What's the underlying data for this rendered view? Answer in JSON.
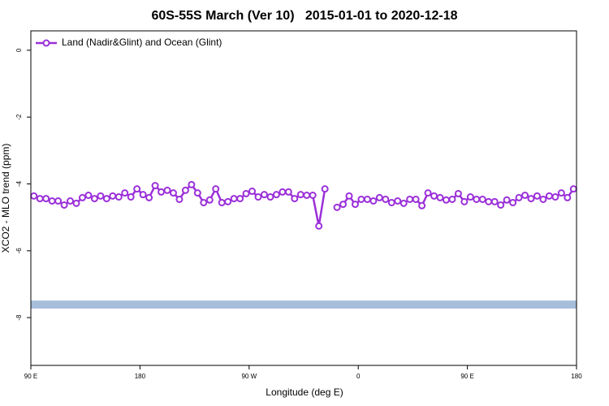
{
  "chart_data": {
    "type": "line",
    "title": "60S-55S March (Ver 10)   2015-01-01 to 2020-12-18",
    "x_label": "Longitude (deg E)",
    "y_label": "XCO2 - MLO trend (ppm)",
    "xlim": [
      90,
      540
    ],
    "xticks": [
      {
        "value": 90,
        "label": "90 E"
      },
      180,
      {
        "value": 270,
        "label": "90 W"
      },
      {
        "value": 360,
        "label": "0"
      },
      {
        "value": 450,
        "label": "90 E"
      },
      {
        "value": 540,
        "label": "180"
      }
    ],
    "ylim": [
      -9.43,
      0.58
    ],
    "yticks": [
      0,
      -2,
      -4,
      -6,
      -8
    ],
    "legend": "top-left",
    "band": {
      "range": [
        -7.73,
        -7.49
      ],
      "color": "#a6bddb"
    },
    "series": [
      {
        "name": "Land (Nadir&Glint) and Ocean (Glint)",
        "color": "#9b30d9",
        "x": [
          92.5,
          97.5,
          102.5,
          107.5,
          112.5,
          117.5,
          122.5,
          127.5,
          132.5,
          137.5,
          142.5,
          147.5,
          152.5,
          157.5,
          162.5,
          167.5,
          172.5,
          177.5,
          182.5,
          187.5,
          192.5,
          197.5,
          202.5,
          207.5,
          212.5,
          217.5,
          222.5,
          227.5,
          232.5,
          237.5,
          242.5,
          247.5,
          252.5,
          257.5,
          262.5,
          267.5,
          272.5,
          277.5,
          282.5,
          287.5,
          292.5,
          297.5,
          302.5,
          307.5,
          312.5,
          317.5,
          322.5,
          327.5,
          332.5,
          337.5,
          342.5,
          347.5,
          352.5,
          357.5,
          362.5,
          367.5,
          372.5,
          377.5,
          382.5,
          387.5,
          392.5,
          397.5,
          402.5,
          407.5,
          412.5,
          417.5,
          422.5,
          427.5,
          432.5,
          437.5,
          442.5,
          447.5,
          452.5,
          457.5,
          462.5,
          467.5,
          472.5,
          477.5,
          482.5,
          487.5,
          492.5,
          497.5,
          502.5,
          507.5,
          512.5,
          517.5,
          522.5,
          527.5,
          532.5,
          537.5
        ],
        "values": [
          -4.36,
          -4.44,
          -4.44,
          -4.51,
          -4.51,
          -4.63,
          -4.51,
          -4.58,
          -4.41,
          -4.34,
          -4.44,
          -4.36,
          -4.44,
          -4.36,
          -4.39,
          -4.27,
          -4.39,
          -4.15,
          -4.32,
          -4.41,
          -4.05,
          -4.24,
          -4.19,
          -4.27,
          -4.46,
          -4.19,
          -4.02,
          -4.27,
          -4.56,
          -4.48,
          -4.15,
          -4.56,
          -4.53,
          -4.44,
          -4.44,
          -4.29,
          -4.22,
          -4.39,
          -4.32,
          -4.39,
          -4.32,
          -4.24,
          -4.24,
          -4.44,
          -4.32,
          -4.34,
          -4.34,
          -5.26,
          -4.15,
          null,
          -4.7,
          -4.61,
          -4.36,
          -4.61,
          -4.46,
          -4.46,
          -4.51,
          -4.41,
          -4.46,
          -4.56,
          -4.51,
          -4.58,
          -4.46,
          -4.46,
          -4.65,
          -4.27,
          -4.36,
          -4.41,
          -4.48,
          -4.46,
          -4.29,
          -4.53,
          -4.39,
          -4.46,
          -4.46,
          -4.53,
          -4.53,
          -4.63,
          -4.48,
          -4.56,
          -4.41,
          -4.34,
          -4.44,
          -4.36,
          -4.46,
          -4.36,
          -4.39,
          -4.27,
          -4.41,
          -4.15
        ]
      }
    ]
  }
}
